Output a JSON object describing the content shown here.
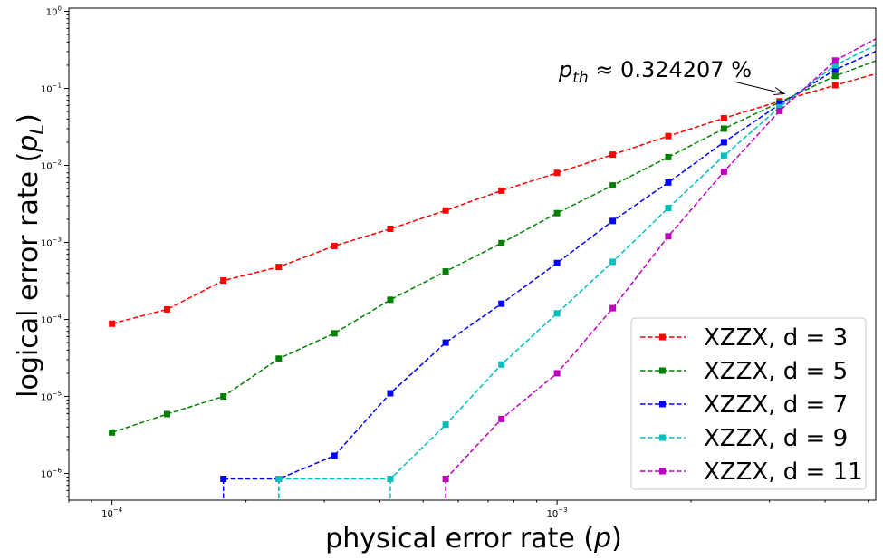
{
  "chart_data": {
    "type": "line",
    "xscale": "log",
    "yscale": "log",
    "xlim": [
      8e-05,
      0.0052
    ],
    "ylim": [
      4.5e-07,
      1.1
    ],
    "xlabel": {
      "prefix": "physical error rate (",
      "var": "p",
      "suffix": ")"
    },
    "ylabel": {
      "prefix": "logical error rate (",
      "var": "p",
      "sub": "L",
      "suffix": ")"
    },
    "xticks": [
      {
        "value": 0.0001,
        "base": "10",
        "exp": "−4"
      },
      {
        "value": 0.001,
        "base": "10",
        "exp": "−3"
      }
    ],
    "yticks": [
      {
        "value": 1e-06,
        "base": "10",
        "exp": "−6"
      },
      {
        "value": 1e-05,
        "base": "10",
        "exp": "−5"
      },
      {
        "value": 0.0001,
        "base": "10",
        "exp": "−4"
      },
      {
        "value": 0.001,
        "base": "10",
        "exp": "−3"
      },
      {
        "value": 0.01,
        "base": "10",
        "exp": "−2"
      },
      {
        "value": 0.1,
        "base": "10",
        "exp": "−1"
      },
      {
        "value": 1,
        "base": "10",
        "exp": "0"
      }
    ],
    "annotation": {
      "var": "p",
      "sub": "th",
      "text": " ≈ 0.324207 %",
      "x": 0.00324207,
      "y": 0.085
    },
    "legend_position": "lower right",
    "series": [
      {
        "name": "XZZX, d = 3",
        "color": "#ff0000",
        "x": [
          0.0001,
          0.000133,
          0.000178,
          0.000237,
          0.000316,
          0.000422,
          0.000562,
          0.00075,
          0.001,
          0.001334,
          0.001778,
          0.002371,
          0.003162,
          0.004217,
          0.005623
        ],
        "y": [
          8.8e-05,
          0.000135,
          0.00032,
          0.00048,
          0.0009,
          0.0015,
          0.0026,
          0.0047,
          0.008,
          0.0138,
          0.024,
          0.041,
          0.068,
          0.11,
          0.175
        ]
      },
      {
        "name": "XZZX, d = 5",
        "color": "#008000",
        "x": [
          0.0001,
          0.000133,
          0.000178,
          0.000237,
          0.000316,
          0.000422,
          0.000562,
          0.00075,
          0.001,
          0.001334,
          0.001778,
          0.002371,
          0.003162,
          0.004217,
          0.005623
        ],
        "y": [
          3.4e-06,
          5.9e-06,
          1e-05,
          3.1e-05,
          6.6e-05,
          0.00018,
          0.00042,
          0.00098,
          0.0024,
          0.0055,
          0.0128,
          0.03,
          0.066,
          0.145,
          0.27
        ]
      },
      {
        "name": "XZZX, d = 7",
        "color": "#0000ff",
        "x": [
          0.000178,
          0.000237,
          0.000316,
          0.000422,
          0.000562,
          0.00075,
          0.001,
          0.001334,
          0.001778,
          0.002371,
          0.003162,
          0.004217,
          0.005623
        ],
        "y": [
          8.5e-07,
          8.5e-07,
          1.7e-06,
          1.1e-05,
          5e-05,
          0.00016,
          0.00054,
          0.0019,
          0.006,
          0.02,
          0.062,
          0.175,
          0.37
        ],
        "drop_from": [
          0.000178,
          0.000237
        ]
      },
      {
        "name": "XZZX, d = 9",
        "color": "#00bfbf",
        "x": [
          0.000237,
          0.000422,
          0.000562,
          0.00075,
          0.001,
          0.001334,
          0.001778,
          0.002371,
          0.003162,
          0.004217,
          0.005623
        ],
        "y": [
          8.5e-07,
          8.5e-07,
          4.3e-06,
          2.6e-05,
          0.00012,
          0.00056,
          0.0028,
          0.0133,
          0.057,
          0.2,
          0.46
        ],
        "drop_from": [
          0.000237,
          0.000422
        ]
      },
      {
        "name": "XZZX, d = 11",
        "color": "#bf00bf",
        "x": [
          0.000562,
          0.00075,
          0.001,
          0.001334,
          0.001778,
          0.002371,
          0.003162,
          0.004217,
          0.005623
        ],
        "y": [
          8.5e-07,
          5.1e-06,
          2e-05,
          0.00014,
          0.0012,
          0.0083,
          0.051,
          0.23,
          0.56
        ],
        "drop_from": [
          0.000562
        ]
      }
    ]
  }
}
